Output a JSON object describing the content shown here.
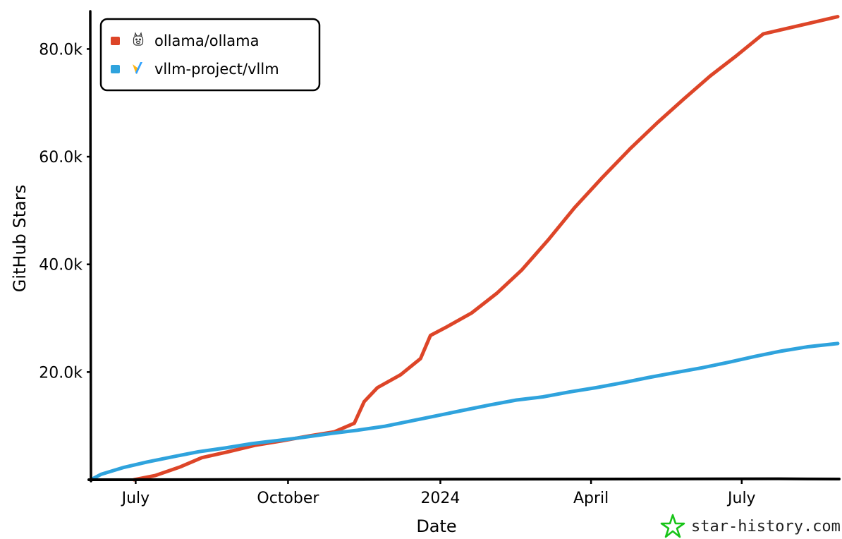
{
  "chart_data": {
    "type": "line",
    "xlabel": "Date",
    "ylabel": "GitHub Stars",
    "ylim": [
      0,
      87000
    ],
    "y_ticks": [
      {
        "value": 20000,
        "label": "20.0k"
      },
      {
        "value": 40000,
        "label": "40.0k"
      },
      {
        "value": 60000,
        "label": "60.0k"
      },
      {
        "value": 80000,
        "label": "80.0k"
      }
    ],
    "x_ticks": [
      {
        "date": "2023-07-01",
        "label": "July"
      },
      {
        "date": "2023-10-01",
        "label": "October"
      },
      {
        "date": "2024-01-01",
        "label": "2024"
      },
      {
        "date": "2024-04-01",
        "label": "April"
      },
      {
        "date": "2024-07-01",
        "label": "July"
      }
    ],
    "xlim": [
      "2023-06-04",
      "2024-08-28"
    ],
    "legend_position": "top-left",
    "grid": false,
    "series": [
      {
        "name": "ollama/ollama",
        "color": "#dd4528",
        "icon": "llama-icon",
        "points": [
          [
            "2023-06-30",
            0
          ],
          [
            "2023-07-13",
            800
          ],
          [
            "2023-07-28",
            2400
          ],
          [
            "2023-08-10",
            4100
          ],
          [
            "2023-08-26",
            5200
          ],
          [
            "2023-09-11",
            6400
          ],
          [
            "2023-09-27",
            7200
          ],
          [
            "2023-10-13",
            8100
          ],
          [
            "2023-10-29",
            8900
          ],
          [
            "2023-11-10",
            10500
          ],
          [
            "2023-11-16",
            14500
          ],
          [
            "2023-11-24",
            17100
          ],
          [
            "2023-12-08",
            19500
          ],
          [
            "2023-12-20",
            22500
          ],
          [
            "2023-12-26",
            26800
          ],
          [
            "2024-01-05",
            28400
          ],
          [
            "2024-01-20",
            31000
          ],
          [
            "2024-02-04",
            34600
          ],
          [
            "2024-02-19",
            38900
          ],
          [
            "2024-03-06",
            44500
          ],
          [
            "2024-03-22",
            50500
          ],
          [
            "2024-04-08",
            56200
          ],
          [
            "2024-04-25",
            61600
          ],
          [
            "2024-05-11",
            66300
          ],
          [
            "2024-05-27",
            70700
          ],
          [
            "2024-06-12",
            75000
          ],
          [
            "2024-06-28",
            78800
          ],
          [
            "2024-07-14",
            82800
          ],
          [
            "2024-08-28",
            86000
          ]
        ]
      },
      {
        "name": "vllm-project/vllm",
        "color": "#2fa3dd",
        "icon": "vllm-logo-icon",
        "points": [
          [
            "2023-06-04",
            0
          ],
          [
            "2023-06-10",
            1000
          ],
          [
            "2023-06-24",
            2300
          ],
          [
            "2023-07-08",
            3300
          ],
          [
            "2023-07-24",
            4300
          ],
          [
            "2023-08-08",
            5200
          ],
          [
            "2023-08-24",
            5900
          ],
          [
            "2023-09-09",
            6700
          ],
          [
            "2023-09-25",
            7300
          ],
          [
            "2023-10-11",
            7900
          ],
          [
            "2023-10-27",
            8600
          ],
          [
            "2023-11-12",
            9200
          ],
          [
            "2023-11-28",
            9900
          ],
          [
            "2023-12-14",
            10900
          ],
          [
            "2023-12-30",
            11900
          ],
          [
            "2024-01-15",
            12900
          ],
          [
            "2024-01-31",
            13900
          ],
          [
            "2024-02-16",
            14800
          ],
          [
            "2024-03-03",
            15400
          ],
          [
            "2024-03-19",
            16300
          ],
          [
            "2024-04-04",
            17100
          ],
          [
            "2024-04-20",
            18000
          ],
          [
            "2024-05-06",
            19000
          ],
          [
            "2024-05-22",
            19900
          ],
          [
            "2024-06-07",
            20800
          ],
          [
            "2024-06-23",
            21800
          ],
          [
            "2024-07-09",
            22900
          ],
          [
            "2024-07-25",
            23900
          ],
          [
            "2024-08-10",
            24700
          ],
          [
            "2024-08-28",
            25300
          ]
        ]
      }
    ]
  },
  "watermark": {
    "text": "star-history.com",
    "icon": "star-history-logo-icon",
    "color": "#18c418"
  }
}
